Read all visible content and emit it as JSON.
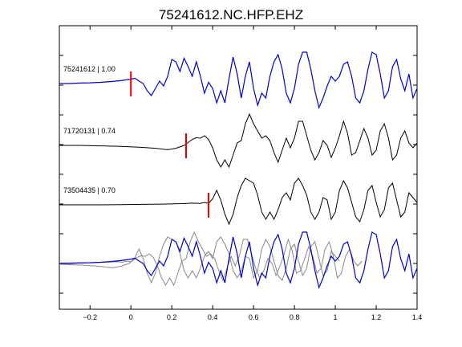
{
  "chart_data": {
    "type": "line",
    "title": "75241612.NC.HFP.EHZ",
    "xlabel": "",
    "ylabel": "",
    "xlim": [
      -0.35,
      1.4
    ],
    "x_ticks": [
      -0.2,
      0,
      0.2,
      0.4,
      0.6,
      0.8,
      1,
      1.2,
      1.4
    ],
    "x_tick_labels": [
      "−0.2",
      "0",
      "0.2",
      "0.4",
      "0.6",
      "0.8",
      "1",
      "1.2",
      "1.4"
    ],
    "grid": false,
    "traces": [
      {
        "label": "75241612 | 1.00",
        "color": "#0000cc",
        "pick_time": 0.0,
        "points": [
          [
            -0.35,
            0
          ],
          [
            -0.3,
            0
          ],
          [
            -0.25,
            0.02
          ],
          [
            -0.2,
            0.03
          ],
          [
            -0.15,
            0.05
          ],
          [
            -0.1,
            0.08
          ],
          [
            -0.05,
            0.12
          ],
          [
            0,
            0.18
          ],
          [
            0.02,
            0.22
          ],
          [
            0.04,
            0.1
          ],
          [
            0.06,
            0
          ],
          [
            0.08,
            -0.3
          ],
          [
            0.1,
            -0.5
          ],
          [
            0.12,
            -0.2
          ],
          [
            0.14,
            0.1
          ],
          [
            0.16,
            -0.1
          ],
          [
            0.18,
            0.3
          ],
          [
            0.2,
            1
          ],
          [
            0.22,
            0.9
          ],
          [
            0.24,
            0.5
          ],
          [
            0.26,
            1.05
          ],
          [
            0.28,
            0.7
          ],
          [
            0.3,
            0.3
          ],
          [
            0.32,
            0.9
          ],
          [
            0.34,
            0.3
          ],
          [
            0.36,
            -0.4
          ],
          [
            0.38,
            0.05
          ],
          [
            0.4,
            -0.2
          ],
          [
            0.42,
            -0.8
          ],
          [
            0.44,
            -0.3
          ],
          [
            0.46,
            -0.8
          ],
          [
            0.48,
            0.2
          ],
          [
            0.5,
            1.1
          ],
          [
            0.52,
            0.4
          ],
          [
            0.54,
            -0.6
          ],
          [
            0.56,
            0.3
          ],
          [
            0.58,
            0.9
          ],
          [
            0.6,
            -0.2
          ],
          [
            0.62,
            -0.9
          ],
          [
            0.64,
            -0.4
          ],
          [
            0.66,
            -0.6
          ],
          [
            0.68,
            0.3
          ],
          [
            0.7,
            0.9
          ],
          [
            0.72,
            1.2
          ],
          [
            0.74,
            0.6
          ],
          [
            0.76,
            -0.4
          ],
          [
            0.78,
            -0.8
          ],
          [
            0.8,
            -0.2
          ],
          [
            0.82,
            0.8
          ],
          [
            0.84,
            1.3
          ],
          [
            0.86,
            1.3
          ],
          [
            0.88,
            0.6
          ],
          [
            0.9,
            -0.3
          ],
          [
            0.92,
            -1.0
          ],
          [
            0.94,
            -0.6
          ],
          [
            0.96,
            -0.1
          ],
          [
            0.98,
            0.3
          ],
          [
            1,
            0.1
          ],
          [
            1.02,
            0.3
          ],
          [
            1.04,
            0.8
          ],
          [
            1.06,
            0.9
          ],
          [
            1.08,
            0.3
          ],
          [
            1.1,
            -0.6
          ],
          [
            1.12,
            -0.8
          ],
          [
            1.14,
            -0.3
          ],
          [
            1.16,
            0.6
          ],
          [
            1.18,
            1.3
          ],
          [
            1.2,
            1.2
          ],
          [
            1.22,
            0.4
          ],
          [
            1.24,
            -0.6
          ],
          [
            1.26,
            -0.3
          ],
          [
            1.28,
            0.7
          ],
          [
            1.3,
            1.0
          ],
          [
            1.32,
            0.2
          ],
          [
            1.34,
            -0.3
          ],
          [
            1.36,
            0.4
          ],
          [
            1.38,
            -0.6
          ],
          [
            1.4,
            -0.2
          ]
        ]
      },
      {
        "label": "71720131 | 0.74",
        "color": "#000000",
        "pick_time": 0.27,
        "points": [
          [
            -0.35,
            0
          ],
          [
            -0.25,
            0
          ],
          [
            -0.15,
            -0.02
          ],
          [
            -0.05,
            -0.04
          ],
          [
            0.05,
            -0.08
          ],
          [
            0.12,
            -0.12
          ],
          [
            0.18,
            -0.18
          ],
          [
            0.22,
            -0.12
          ],
          [
            0.26,
            0
          ],
          [
            0.28,
            0.12
          ],
          [
            0.3,
            0.25
          ],
          [
            0.32,
            0.32
          ],
          [
            0.34,
            0.3
          ],
          [
            0.36,
            0.4
          ],
          [
            0.38,
            0.25
          ],
          [
            0.4,
            -0.1
          ],
          [
            0.42,
            -0.6
          ],
          [
            0.44,
            -0.9
          ],
          [
            0.46,
            -0.6
          ],
          [
            0.48,
            -0.9
          ],
          [
            0.5,
            -0.4
          ],
          [
            0.52,
            0.1
          ],
          [
            0.54,
            0.2
          ],
          [
            0.56,
            0.9
          ],
          [
            0.58,
            1.3
          ],
          [
            0.6,
            0.9
          ],
          [
            0.62,
            0.6
          ],
          [
            0.64,
            0.3
          ],
          [
            0.66,
            0.4
          ],
          [
            0.68,
            0.2
          ],
          [
            0.7,
            -0.3
          ],
          [
            0.72,
            -0.7
          ],
          [
            0.74,
            -0.2
          ],
          [
            0.76,
            0.3
          ],
          [
            0.78,
            -0.1
          ],
          [
            0.8,
            0.3
          ],
          [
            0.82,
            1.0
          ],
          [
            0.84,
            1.0
          ],
          [
            0.86,
            0.4
          ],
          [
            0.88,
            -0.2
          ],
          [
            0.9,
            -0.6
          ],
          [
            0.92,
            -0.3
          ],
          [
            0.94,
            0.2
          ],
          [
            0.96,
            0
          ],
          [
            0.98,
            -0.5
          ],
          [
            1,
            -0.1
          ],
          [
            1.02,
            0.4
          ],
          [
            1.04,
            1.0
          ],
          [
            1.06,
            0.5
          ],
          [
            1.08,
            -0.4
          ],
          [
            1.1,
            -0.3
          ],
          [
            1.12,
            0.2
          ],
          [
            1.14,
            0.7
          ],
          [
            1.16,
            0.3
          ],
          [
            1.18,
            -0.4
          ],
          [
            1.2,
            -0.2
          ],
          [
            1.22,
            0.6
          ],
          [
            1.24,
            0.9
          ],
          [
            1.26,
            0.3
          ],
          [
            1.28,
            -0.6
          ],
          [
            1.3,
            -0.4
          ],
          [
            1.32,
            0.3
          ],
          [
            1.34,
            0.6
          ],
          [
            1.36,
            0.1
          ],
          [
            1.38,
            -0.1
          ],
          [
            1.4,
            0.1
          ]
        ]
      },
      {
        "label": "73504435 | 0.70",
        "color": "#000000",
        "pick_time": 0.38,
        "points": [
          [
            -0.35,
            0
          ],
          [
            -0.25,
            0
          ],
          [
            -0.15,
            0
          ],
          [
            -0.05,
            0.01
          ],
          [
            0.05,
            0.02
          ],
          [
            0.15,
            0.03
          ],
          [
            0.25,
            0.05
          ],
          [
            0.3,
            0.07
          ],
          [
            0.34,
            0.06
          ],
          [
            0.36,
            0.1
          ],
          [
            0.38,
            0.06
          ],
          [
            0.4,
            0.25
          ],
          [
            0.42,
            0.6
          ],
          [
            0.44,
            0.2
          ],
          [
            0.46,
            -0.4
          ],
          [
            0.48,
            -0.8
          ],
          [
            0.5,
            -0.4
          ],
          [
            0.52,
            0.3
          ],
          [
            0.54,
            0.8
          ],
          [
            0.56,
            1.1
          ],
          [
            0.58,
            1.0
          ],
          [
            0.6,
            0.9
          ],
          [
            0.62,
            0.4
          ],
          [
            0.64,
            -0.3
          ],
          [
            0.66,
            -0.6
          ],
          [
            0.68,
            -0.3
          ],
          [
            0.7,
            -0.6
          ],
          [
            0.72,
            -0.2
          ],
          [
            0.74,
            0.3
          ],
          [
            0.76,
            0.5
          ],
          [
            0.78,
            0.2
          ],
          [
            0.8,
            0.9
          ],
          [
            0.82,
            1.1
          ],
          [
            0.84,
            0.8
          ],
          [
            0.86,
            0.4
          ],
          [
            0.88,
            -0.3
          ],
          [
            0.9,
            -0.6
          ],
          [
            0.92,
            -0.3
          ],
          [
            0.94,
            0.3
          ],
          [
            0.96,
            0.2
          ],
          [
            0.98,
            -0.6
          ],
          [
            1,
            -0.3
          ],
          [
            1.02,
            0.6
          ],
          [
            1.04,
            1.0
          ],
          [
            1.06,
            0.7
          ],
          [
            1.08,
            0.1
          ],
          [
            1.1,
            -0.5
          ],
          [
            1.12,
            -0.7
          ],
          [
            1.14,
            -0.2
          ],
          [
            1.16,
            0.6
          ],
          [
            1.18,
            0.8
          ],
          [
            1.2,
            0.1
          ],
          [
            1.22,
            -0.5
          ],
          [
            1.24,
            -0.2
          ],
          [
            1.26,
            0.7
          ],
          [
            1.28,
            0.9
          ],
          [
            1.3,
            0.2
          ],
          [
            1.32,
            -0.5
          ],
          [
            1.34,
            -0.3
          ],
          [
            1.36,
            0.5
          ],
          [
            1.38,
            0.3
          ],
          [
            1.4,
            0.1
          ]
        ]
      }
    ],
    "overlay": {
      "gray_color": "#888888",
      "blue_color": "#0000cc"
    }
  }
}
